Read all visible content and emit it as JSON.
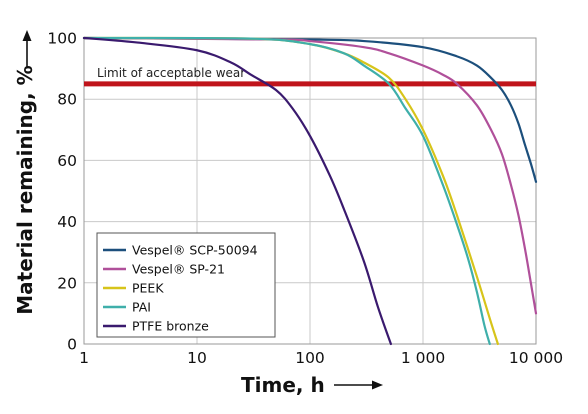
{
  "chart_data": {
    "type": "line",
    "title": "",
    "xlabel": "Time, h",
    "ylabel": "Material remaining, %",
    "xscale": "log",
    "xlim": [
      1,
      10000
    ],
    "ylim": [
      0,
      100
    ],
    "x_ticks": [
      1,
      10,
      100,
      1000,
      10000
    ],
    "x_tick_labels": [
      "1",
      "10",
      "100",
      "1 000",
      "10 000"
    ],
    "y_ticks": [
      0,
      20,
      40,
      60,
      80,
      100
    ],
    "y_tick_labels": [
      "0",
      "20",
      "40",
      "60",
      "80",
      "100"
    ],
    "grid": true,
    "legend_position": "bottom-left",
    "threshold": {
      "y": 85,
      "label": "Limit of acceptable wear",
      "color": "#c0141b"
    },
    "series": [
      {
        "name": "Vespel® SCP-50094",
        "color": "#1c4f7c",
        "points": [
          [
            1,
            100
          ],
          [
            100,
            99.5
          ],
          [
            300,
            99
          ],
          [
            1000,
            97
          ],
          [
            2000,
            94
          ],
          [
            3000,
            91
          ],
          [
            4000,
            87
          ],
          [
            5000,
            83
          ],
          [
            6000,
            78
          ],
          [
            7000,
            72
          ],
          [
            8000,
            65
          ],
          [
            9000,
            59
          ],
          [
            10000,
            53
          ]
        ]
      },
      {
        "name": "Vespel® SP-21",
        "color": "#b0509a",
        "points": [
          [
            1,
            100
          ],
          [
            50,
            99.5
          ],
          [
            100,
            99
          ],
          [
            300,
            97
          ],
          [
            500,
            95
          ],
          [
            1000,
            91
          ],
          [
            1500,
            88
          ],
          [
            2000,
            85
          ],
          [
            3000,
            78
          ],
          [
            4000,
            70
          ],
          [
            5000,
            62
          ],
          [
            6000,
            52
          ],
          [
            7000,
            42
          ],
          [
            8000,
            31
          ],
          [
            9000,
            20
          ],
          [
            10000,
            10
          ]
        ]
      },
      {
        "name": "PEEK",
        "color": "#d7c41a",
        "points": [
          [
            1,
            100
          ],
          [
            30,
            99.8
          ],
          [
            100,
            98
          ],
          [
            200,
            95
          ],
          [
            300,
            92
          ],
          [
            500,
            87
          ],
          [
            700,
            80
          ],
          [
            1000,
            70
          ],
          [
            1500,
            55
          ],
          [
            2000,
            42
          ],
          [
            3000,
            22
          ],
          [
            4000,
            7
          ],
          [
            4600,
            0
          ]
        ]
      },
      {
        "name": "PAI",
        "color": "#3fafaa",
        "points": [
          [
            1,
            100
          ],
          [
            30,
            99.8
          ],
          [
            100,
            98
          ],
          [
            200,
            95
          ],
          [
            300,
            91
          ],
          [
            500,
            85
          ],
          [
            700,
            77
          ],
          [
            1000,
            68
          ],
          [
            1500,
            52
          ],
          [
            2000,
            39
          ],
          [
            2500,
            28
          ],
          [
            3000,
            17
          ],
          [
            3500,
            6
          ],
          [
            3900,
            0
          ]
        ]
      },
      {
        "name": "PTFE bronze",
        "color": "#3a1a6e",
        "points": [
          [
            1,
            100
          ],
          [
            3,
            98.5
          ],
          [
            10,
            96
          ],
          [
            20,
            92
          ],
          [
            30,
            88
          ],
          [
            50,
            83
          ],
          [
            70,
            77
          ],
          [
            100,
            68
          ],
          [
            150,
            55
          ],
          [
            200,
            44
          ],
          [
            300,
            27
          ],
          [
            400,
            12
          ],
          [
            520,
            0
          ]
        ]
      }
    ]
  }
}
